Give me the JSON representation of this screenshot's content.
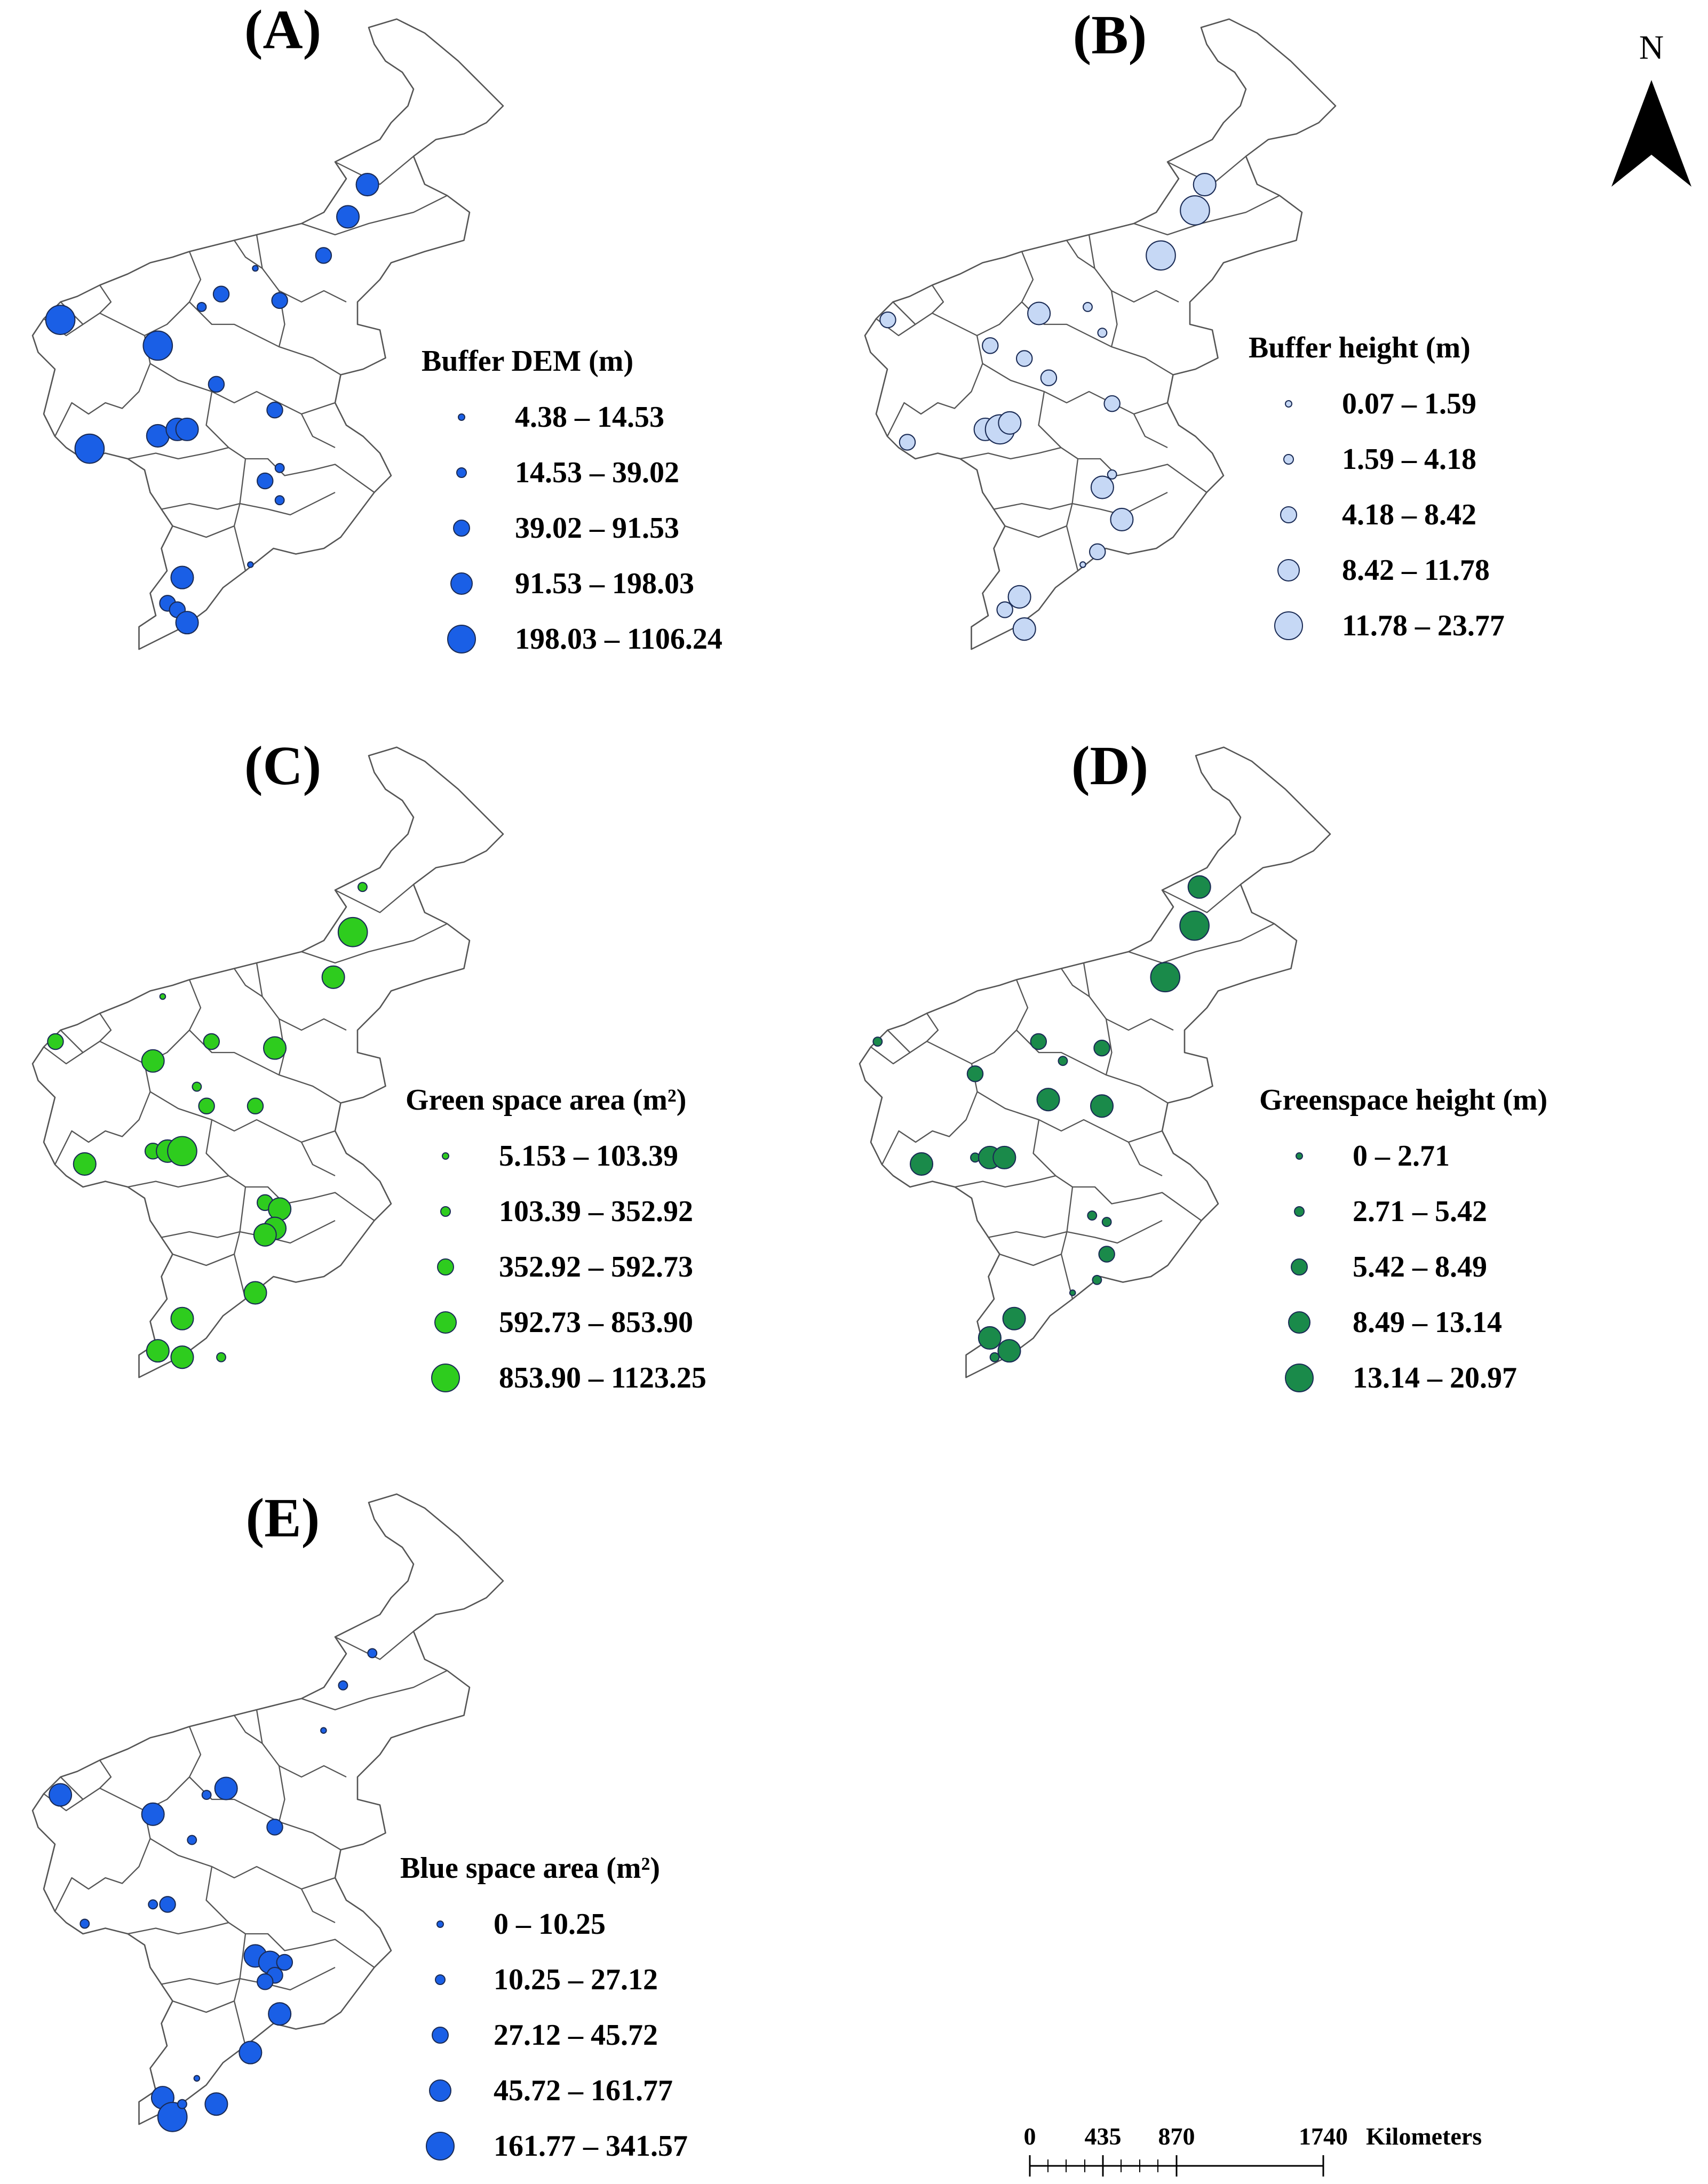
{
  "north_arrow": {
    "label": "N"
  },
  "scale_bar": {
    "ticks": [
      "0",
      "435",
      "870",
      "1740"
    ],
    "unit": "Kilometers"
  },
  "panels": [
    {
      "label": "(A)",
      "legend_title": "Buffer DEM (m)",
      "fill": "#1a5fe6",
      "classes": [
        "4.38 – 14.53",
        "14.53 – 39.02",
        "39.02 – 91.53",
        "91.53 – 198.03",
        "198.03 – 1106.24"
      ],
      "points": [
        [
          0.71,
          0.27,
          3
        ],
        [
          0.67,
          0.32,
          3
        ],
        [
          0.62,
          0.38,
          2
        ],
        [
          0.08,
          0.48,
          4
        ],
        [
          0.28,
          0.52,
          4
        ],
        [
          0.41,
          0.44,
          2
        ],
        [
          0.53,
          0.45,
          2
        ],
        [
          0.37,
          0.46,
          1
        ],
        [
          0.4,
          0.58,
          2
        ],
        [
          0.52,
          0.62,
          2
        ],
        [
          0.14,
          0.68,
          4
        ],
        [
          0.28,
          0.66,
          3
        ],
        [
          0.32,
          0.65,
          3
        ],
        [
          0.34,
          0.65,
          3
        ],
        [
          0.5,
          0.73,
          2
        ],
        [
          0.53,
          0.71,
          1
        ],
        [
          0.53,
          0.76,
          1
        ],
        [
          0.33,
          0.88,
          3
        ],
        [
          0.3,
          0.92,
          2
        ],
        [
          0.32,
          0.93,
          2
        ],
        [
          0.34,
          0.95,
          3
        ],
        [
          0.47,
          0.86,
          0
        ],
        [
          0.48,
          0.4,
          0
        ]
      ]
    },
    {
      "label": "(B)",
      "legend_title": "Buffer height (m)",
      "fill": "#c6d8f5",
      "classes": [
        "0.07 – 1.59",
        "1.59 – 4.18",
        "4.18 – 8.42",
        "8.42 – 11.78",
        "11.78 – 23.77"
      ],
      "points": [
        [
          0.72,
          0.27,
          3
        ],
        [
          0.7,
          0.31,
          4
        ],
        [
          0.63,
          0.38,
          4
        ],
        [
          0.07,
          0.48,
          2
        ],
        [
          0.28,
          0.52,
          2
        ],
        [
          0.38,
          0.47,
          3
        ],
        [
          0.48,
          0.46,
          1
        ],
        [
          0.35,
          0.54,
          2
        ],
        [
          0.4,
          0.57,
          2
        ],
        [
          0.53,
          0.61,
          2
        ],
        [
          0.11,
          0.67,
          2
        ],
        [
          0.27,
          0.65,
          3
        ],
        [
          0.3,
          0.65,
          4
        ],
        [
          0.32,
          0.64,
          3
        ],
        [
          0.51,
          0.74,
          3
        ],
        [
          0.53,
          0.72,
          1
        ],
        [
          0.55,
          0.79,
          3
        ],
        [
          0.5,
          0.84,
          2
        ],
        [
          0.34,
          0.91,
          3
        ],
        [
          0.31,
          0.93,
          2
        ],
        [
          0.35,
          0.96,
          3
        ],
        [
          0.47,
          0.86,
          0
        ],
        [
          0.51,
          0.5,
          1
        ]
      ]
    },
    {
      "label": "(C)",
      "legend_title": "Green space area (m²)",
      "fill": "#2ecc1e",
      "classes": [
        "5.153 – 103.39",
        "103.39 – 352.92",
        "352.92 – 592.73",
        "592.73 – 853.90",
        "853.90 – 1123.25"
      ],
      "points": [
        [
          0.7,
          0.23,
          1
        ],
        [
          0.68,
          0.3,
          4
        ],
        [
          0.64,
          0.37,
          3
        ],
        [
          0.07,
          0.47,
          2
        ],
        [
          0.27,
          0.5,
          3
        ],
        [
          0.39,
          0.47,
          2
        ],
        [
          0.52,
          0.48,
          3
        ],
        [
          0.36,
          0.54,
          1
        ],
        [
          0.38,
          0.57,
          2
        ],
        [
          0.48,
          0.57,
          2
        ],
        [
          0.13,
          0.66,
          3
        ],
        [
          0.27,
          0.64,
          2
        ],
        [
          0.3,
          0.64,
          3
        ],
        [
          0.33,
          0.64,
          4
        ],
        [
          0.5,
          0.72,
          2
        ],
        [
          0.53,
          0.73,
          3
        ],
        [
          0.52,
          0.76,
          3
        ],
        [
          0.5,
          0.77,
          3
        ],
        [
          0.48,
          0.86,
          3
        ],
        [
          0.33,
          0.9,
          3
        ],
        [
          0.28,
          0.95,
          3
        ],
        [
          0.33,
          0.96,
          3
        ],
        [
          0.41,
          0.96,
          1
        ],
        [
          0.29,
          0.4,
          0
        ]
      ]
    },
    {
      "label": "(D)",
      "legend_title": "Greenspace height (m)",
      "fill": "#1a8a4a",
      "classes": [
        "0 – 2.71",
        "2.71 – 5.42",
        "5.42 – 8.49",
        "8.49 – 13.14",
        "13.14 – 20.97"
      ],
      "points": [
        [
          0.72,
          0.23,
          3
        ],
        [
          0.71,
          0.29,
          4
        ],
        [
          0.65,
          0.37,
          4
        ],
        [
          0.06,
          0.47,
          1
        ],
        [
          0.26,
          0.52,
          2
        ],
        [
          0.39,
          0.47,
          2
        ],
        [
          0.52,
          0.48,
          2
        ],
        [
          0.44,
          0.5,
          1
        ],
        [
          0.41,
          0.56,
          3
        ],
        [
          0.52,
          0.57,
          3
        ],
        [
          0.15,
          0.66,
          3
        ],
        [
          0.26,
          0.65,
          1
        ],
        [
          0.29,
          0.65,
          3
        ],
        [
          0.32,
          0.65,
          3
        ],
        [
          0.5,
          0.74,
          1
        ],
        [
          0.53,
          0.75,
          1
        ],
        [
          0.53,
          0.8,
          2
        ],
        [
          0.51,
          0.84,
          1
        ],
        [
          0.34,
          0.9,
          3
        ],
        [
          0.29,
          0.93,
          3
        ],
        [
          0.33,
          0.95,
          3
        ],
        [
          0.3,
          0.96,
          1
        ],
        [
          0.46,
          0.86,
          0
        ]
      ]
    },
    {
      "label": "(E)",
      "legend_title": "Blue space area (m²)",
      "fill": "#1a5fe6",
      "classes": [
        "0 – 10.25",
        "10.25 – 27.12",
        "27.12 – 45.72",
        "45.72 – 161.77",
        "161.77 – 341.57"
      ],
      "points": [
        [
          0.72,
          0.26,
          1
        ],
        [
          0.66,
          0.31,
          1
        ],
        [
          0.62,
          0.38,
          0
        ],
        [
          0.08,
          0.48,
          3
        ],
        [
          0.27,
          0.51,
          3
        ],
        [
          0.42,
          0.47,
          3
        ],
        [
          0.52,
          0.53,
          2
        ],
        [
          0.38,
          0.48,
          1
        ],
        [
          0.35,
          0.55,
          1
        ],
        [
          0.27,
          0.65,
          1
        ],
        [
          0.3,
          0.65,
          2
        ],
        [
          0.13,
          0.68,
          1
        ],
        [
          0.48,
          0.73,
          3
        ],
        [
          0.51,
          0.74,
          3
        ],
        [
          0.54,
          0.74,
          2
        ],
        [
          0.52,
          0.76,
          2
        ],
        [
          0.5,
          0.77,
          2
        ],
        [
          0.53,
          0.82,
          3
        ],
        [
          0.47,
          0.88,
          3
        ],
        [
          0.29,
          0.95,
          3
        ],
        [
          0.31,
          0.98,
          4
        ],
        [
          0.4,
          0.96,
          3
        ],
        [
          0.33,
          0.96,
          1
        ],
        [
          0.36,
          0.92,
          0
        ]
      ]
    }
  ]
}
